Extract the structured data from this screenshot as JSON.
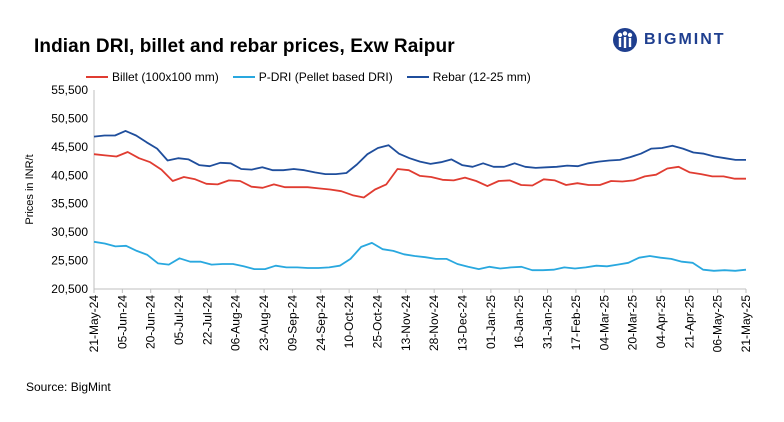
{
  "logo": {
    "text": "BIGMINT",
    "color": "#1f3f8f",
    "icon": "bigmint-logo-icon"
  },
  "source": "Source: BigMint",
  "chart_data": {
    "type": "line",
    "title": "Indian DRI, billet and rebar prices, Exw  Raipur",
    "xlabel": "",
    "ylabel": "Prices in INR/t",
    "ylim": [
      20500,
      55500
    ],
    "yticks": [
      "20,500",
      "25,500",
      "30,500",
      "35,500",
      "40,500",
      "45,500",
      "50,500",
      "55,500"
    ],
    "ytick_values": [
      20500,
      25500,
      30500,
      35500,
      40500,
      45500,
      50500,
      55500
    ],
    "xticks": [
      "21-May-24",
      "05-Jun-24",
      "20-Jun-24",
      "05-Jul-24",
      "22-Jul-24",
      "06-Aug-24",
      "23-Aug-24",
      "09-Sep-24",
      "24-Sep-24",
      "10-Oct-24",
      "25-Oct-24",
      "13-Nov-24",
      "28-Nov-24",
      "13-Dec-24",
      "01-Jan-25",
      "16-Jan-25",
      "31-Jan-25",
      "17-Feb-25",
      "04-Mar-25",
      "20-Mar-25",
      "04-Apr-25",
      "21-Apr-25",
      "06-May-25",
      "21-May-25"
    ],
    "grid": false,
    "legend_position": "top-left",
    "series": [
      {
        "name": "Billet (100x100 mm)",
        "color": "#e03c31",
        "values": [
          44200,
          44000,
          43800,
          44600,
          43500,
          42800,
          41500,
          39500,
          40200,
          39800,
          39000,
          38900,
          39600,
          39500,
          38500,
          38300,
          38900,
          38400,
          38400,
          38400,
          38200,
          38000,
          37700,
          37000,
          36600,
          38000,
          38900,
          41600,
          41400,
          40400,
          40200,
          39700,
          39600,
          40100,
          39500,
          38600,
          39500,
          39600,
          38800,
          38700,
          39800,
          39600,
          38800,
          39100,
          38800,
          38800,
          39500,
          39400,
          39600,
          40300,
          40600,
          41700,
          42000,
          41000,
          40700,
          40300,
          40300,
          39900,
          39900
        ]
      },
      {
        "name": "P-DRI (Pellet based DRI)",
        "color": "#29a8df",
        "values": [
          28800,
          28500,
          28000,
          28100,
          27200,
          26500,
          25000,
          24800,
          25900,
          25300,
          25300,
          24800,
          24900,
          24900,
          24500,
          24000,
          24000,
          24600,
          24300,
          24300,
          24200,
          24200,
          24300,
          24600,
          25800,
          27900,
          28600,
          27500,
          27200,
          26600,
          26300,
          26100,
          25800,
          25800,
          24900,
          24400,
          24000,
          24400,
          24100,
          24300,
          24400,
          23800,
          23800,
          23900,
          24300,
          24100,
          24300,
          24600,
          24500,
          24800,
          25100,
          26000,
          26300,
          26000,
          25800,
          25300,
          25100,
          23900,
          23700,
          23800,
          23700,
          23900
        ]
      },
      {
        "name": "Rebar (12-25 mm)",
        "color": "#1f4e9c",
        "values": [
          47300,
          47500,
          47500,
          48300,
          47500,
          46300,
          45200,
          43100,
          43500,
          43300,
          42300,
          42100,
          42700,
          42600,
          41600,
          41500,
          41900,
          41400,
          41400,
          41600,
          41400,
          41000,
          40700,
          40700,
          40900,
          42400,
          44200,
          45300,
          45800,
          44300,
          43500,
          42900,
          42500,
          42800,
          43300,
          42300,
          42000,
          42600,
          42000,
          42000,
          42600,
          42000,
          41800,
          41900,
          42000,
          42200,
          42100,
          42600,
          42900,
          43100,
          43200,
          43700,
          44300,
          45200,
          45300,
          45700,
          45200,
          44500,
          44300,
          43800,
          43500,
          43200,
          43200
        ]
      }
    ]
  }
}
